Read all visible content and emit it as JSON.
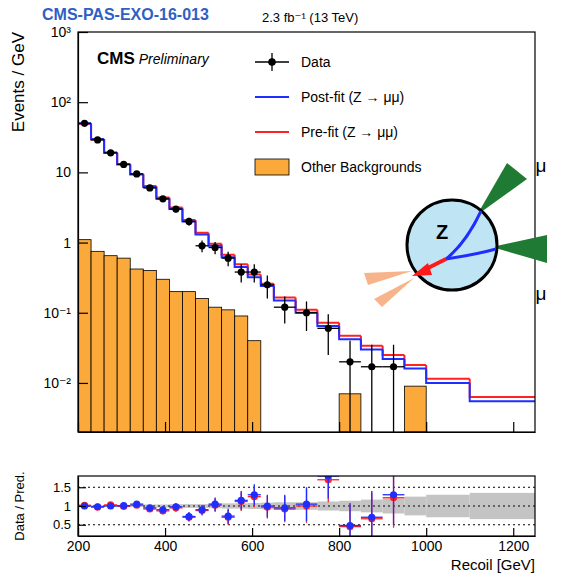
{
  "chart_data": [
    {
      "type": "histogram",
      "title": "CMS-PAS-EXO-16-013",
      "subtitle": "2.3 fb⁻¹ (13 TeV)",
      "annotations": [
        "CMS",
        "Preliminary"
      ],
      "ylabel": "Events / GeV",
      "bins": [
        200,
        230,
        260,
        290,
        320,
        350,
        380,
        410,
        440,
        470,
        500,
        530,
        560,
        590,
        620,
        650,
        700,
        750,
        800,
        850,
        900,
        950,
        1000,
        1100,
        1250
      ],
      "series": [
        {
          "name": "Data",
          "type": "scatter",
          "marker": "circle",
          "color": "#000000",
          "values": [
            50,
            29,
            19,
            13,
            9.5,
            6,
            4.2,
            3,
            2,
            0.9,
            0.85,
            0.6,
            0.38,
            0.38,
            0.25,
            0.12,
            0.1,
            0.06,
            0.02,
            0.017,
            0.017,
            null,
            null,
            null
          ],
          "errors": [
            1.3,
            1.0,
            0.8,
            0.65,
            0.55,
            0.45,
            0.37,
            0.32,
            0.26,
            0.17,
            0.17,
            0.14,
            0.11,
            0.11,
            0.09,
            0.05,
            0.045,
            0.035,
            0.02,
            0.018,
            0.018,
            null,
            null,
            null
          ]
        },
        {
          "name": "Post-fit (Z → μμ)",
          "type": "step",
          "color": "#1f2dff",
          "values": [
            50,
            30,
            19,
            13,
            9.3,
            6.2,
            4.2,
            3,
            2,
            1.3,
            0.9,
            0.62,
            0.45,
            0.32,
            0.24,
            0.15,
            0.1,
            0.065,
            0.042,
            0.03,
            0.022,
            0.016,
            0.01,
            0.0055
          ]
        },
        {
          "name": "Pre-fit (Z → μμ)",
          "type": "step",
          "color": "#ff2222",
          "values": [
            49,
            29.5,
            19.2,
            13.2,
            9.5,
            6.4,
            4.4,
            3.15,
            2.1,
            1.38,
            0.96,
            0.67,
            0.49,
            0.35,
            0.26,
            0.165,
            0.11,
            0.072,
            0.047,
            0.034,
            0.025,
            0.018,
            0.0115,
            0.0063
          ]
        },
        {
          "name": "Other Backgrounds",
          "type": "bar",
          "color": "#fba93a",
          "values": [
            1.1,
            0.75,
            0.65,
            0.6,
            0.42,
            0.4,
            0.3,
            0.2,
            0.2,
            0.16,
            0.12,
            0.11,
            0.09,
            0.04,
            null,
            null,
            null,
            null,
            0.007,
            null,
            null,
            0.009,
            null,
            null
          ]
        }
      ],
      "log": "y",
      "xlim": [
        200,
        1250
      ],
      "xticks": [
        200,
        400,
        600,
        800,
        1000,
        1200
      ],
      "ylim": [
        0.002,
        1000
      ],
      "yticks": [
        {
          "value": 0.01,
          "label": "10⁻²"
        },
        {
          "value": 0.1,
          "label": "10⁻¹"
        },
        1,
        10,
        {
          "value": 100,
          "label": "10²"
        },
        {
          "value": 1000,
          "label": "10³"
        }
      ],
      "tick_labels": "y",
      "legend": "top-right"
    },
    {
      "type": "scatter",
      "xlabel": "Recoil [GeV]",
      "ylabel": "Data / Pred.",
      "bins": [
        200,
        230,
        260,
        290,
        320,
        350,
        380,
        410,
        440,
        470,
        500,
        530,
        560,
        590,
        620,
        650,
        700,
        750,
        800,
        850,
        900,
        950,
        1000,
        1100,
        1250
      ],
      "series": [
        {
          "color": "#ff2222",
          "marker": "circle",
          "values": [
            1.02,
            0.97,
            1.03,
            0.99,
            1.02,
            0.92,
            0.87,
            0.95,
            0.7,
            0.88,
            1.02,
            0.7,
            1.12,
            1.25,
            0.97,
            0.92,
            1.0,
            1.7,
            0.45,
            0.66,
            1.22,
            null,
            null,
            null
          ],
          "errors": [
            0.03,
            0.035,
            0.04,
            0.05,
            0.06,
            0.07,
            0.09,
            0.1,
            0.12,
            0.13,
            0.18,
            0.2,
            0.25,
            0.28,
            0.3,
            0.35,
            0.45,
            0.6,
            0.6,
            0.7,
            0.8,
            null,
            null,
            null
          ]
        },
        {
          "color": "#1f2dff",
          "marker": "circle",
          "values": [
            1,
            0.98,
            1,
            1.01,
            1.05,
            0.95,
            0.9,
            0.98,
            0.72,
            0.9,
            1.05,
            0.73,
            1.15,
            1.3,
            1,
            0.95,
            1.05,
            1.8,
            0.48,
            0.7,
            1.3,
            null,
            null,
            null
          ],
          "errors": [
            0.03,
            0.035,
            0.04,
            0.05,
            0.06,
            0.07,
            0.09,
            0.1,
            0.12,
            0.13,
            0.18,
            0.2,
            0.25,
            0.28,
            0.3,
            0.35,
            0.45,
            0.6,
            0.6,
            0.7,
            0.8,
            null,
            null,
            null
          ]
        }
      ],
      "band_low": [
        0.98,
        0.98,
        0.98,
        0.97,
        0.97,
        0.96,
        0.96,
        0.95,
        0.95,
        0.95,
        0.94,
        0.93,
        0.93,
        0.92,
        0.91,
        0.9,
        0.9,
        0.88,
        0.86,
        0.83,
        0.8,
        0.75,
        0.7,
        0.65
      ],
      "band_high": [
        1.02,
        1.02,
        1.02,
        1.03,
        1.03,
        1.04,
        1.04,
        1.05,
        1.05,
        1.05,
        1.06,
        1.07,
        1.07,
        1.08,
        1.09,
        1.1,
        1.1,
        1.12,
        1.14,
        1.17,
        1.2,
        1.25,
        1.3,
        1.35
      ],
      "xlim": [
        200,
        1250
      ],
      "xticks": [
        200,
        400,
        600,
        800,
        1000,
        1200
      ],
      "ylim": [
        0.2,
        1.8
      ],
      "yticks": [
        0.5,
        1,
        1.5
      ],
      "grid": true
    }
  ],
  "diagram": {
    "labels": [
      "Z",
      "μ",
      "μ"
    ]
  }
}
